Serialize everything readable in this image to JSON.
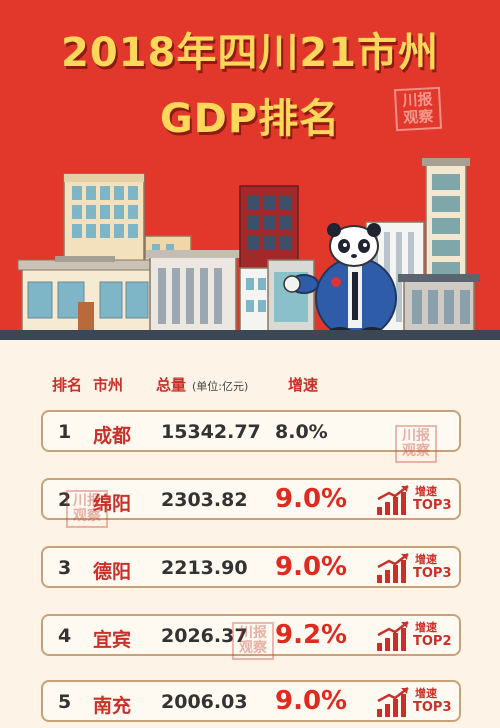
{
  "title_line1": "2018年四川21市州",
  "title_line2": "GDP排名",
  "watermark": "川报观察",
  "table": {
    "headers": {
      "rank": "排名",
      "city": "市州",
      "total": "总量",
      "unit": "(单位:亿元)",
      "growth": "增速"
    },
    "rows": [
      {
        "rank": "1",
        "city": "成都",
        "total": "15342.77",
        "growth": "8.0%",
        "badge": null
      },
      {
        "rank": "2",
        "city": "绵阳",
        "total": "2303.82",
        "growth": "9.0%",
        "badge": {
          "label": "增速",
          "top": "TOP3"
        }
      },
      {
        "rank": "3",
        "city": "德阳",
        "total": "2213.90",
        "growth": "9.0%",
        "badge": {
          "label": "增速",
          "top": "TOP3"
        }
      },
      {
        "rank": "4",
        "city": "宜宾",
        "total": "2026.37",
        "growth": "9.2%",
        "badge": {
          "label": "增速",
          "top": "TOP2"
        }
      },
      {
        "rank": "5",
        "city": "南充",
        "total": "2006.03",
        "growth": "9.0%",
        "badge": {
          "label": "增速",
          "top": "TOP3"
        }
      }
    ]
  },
  "colors": {
    "header_red": "#e2382b",
    "title_gold": "#ffd75a",
    "accent_red": "#c8312a",
    "row_border": "#c8a179"
  }
}
